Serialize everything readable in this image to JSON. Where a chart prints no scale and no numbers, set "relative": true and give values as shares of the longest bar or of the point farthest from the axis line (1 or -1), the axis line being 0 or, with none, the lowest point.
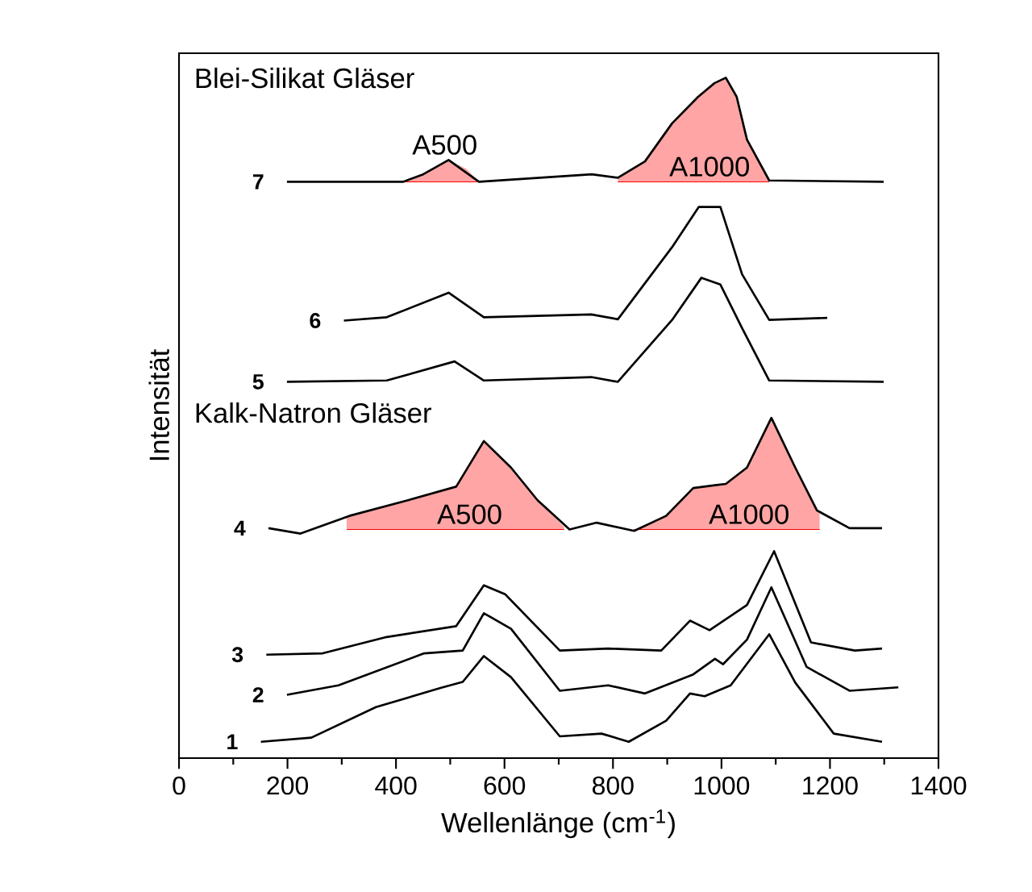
{
  "chart_data": {
    "type": "line",
    "relative": true,
    "xlabel": "Wellenlänge (cm$^{-1}$)",
    "ylabel": "Intensität",
    "xlim": [
      0,
      1400
    ],
    "xticks": [
      0,
      200,
      400,
      600,
      800,
      1000,
      1200,
      1400
    ],
    "legend": false,
    "grid": false,
    "marker": "none",
    "line_style": "solid",
    "annotations": [
      "Blei-Silikat Gläser",
      "Kalk-Natron Gläser"
    ],
    "series": [
      {
        "name": "A500",
        "type": "line",
        "color": "#ff0000",
        "x": [
          413,
          450,
          497,
          530,
          553
        ],
        "values": [
          0.847,
          0.847,
          0.847,
          0.847,
          0.847
        ],
        "upper": [
          0.847,
          0.858,
          0.879,
          0.866,
          0.847
        ],
        "lower": [
          0.847,
          0.847,
          0.847,
          0.847,
          0.847
        ]
      },
      {
        "name": "A1000",
        "type": "line",
        "color": "#ff0000",
        "x": [
          809,
          859,
          909,
          957,
          987,
          1008,
          1028,
          1047,
          1088
        ],
        "values": [
          0.847,
          0.847,
          0.847,
          0.847,
          0.847,
          0.847,
          0.847,
          0.847,
          0.847
        ],
        "upper": [
          0.853,
          0.877,
          0.933,
          0.972,
          0.992,
          1.0,
          0.972,
          0.909,
          0.849
        ],
        "lower": [
          0.847,
          0.847,
          0.847,
          0.847,
          0.847,
          0.847,
          0.847,
          0.847,
          0.847
        ]
      },
      {
        "name": "A500",
        "type": "line",
        "color": "#ff0000",
        "x": [
          309,
          314,
          422,
          511,
          562,
          612,
          661,
          710
        ],
        "values": [
          0.336,
          0.336,
          0.336,
          0.336,
          0.336,
          0.336,
          0.336,
          0.336
        ],
        "upper": [
          0.354,
          0.356,
          0.379,
          0.399,
          0.466,
          0.427,
          0.379,
          0.34
        ],
        "lower": [
          0.336,
          0.336,
          0.336,
          0.336,
          0.336,
          0.336,
          0.336,
          0.336
        ]
      },
      {
        "name": "A1000",
        "type": "line",
        "color": "#ff0000",
        "x": [
          839,
          898,
          948,
          988,
          1008,
          1047,
          1092,
          1136,
          1176,
          1181
        ],
        "values": [
          0.336,
          0.336,
          0.336,
          0.336,
          0.336,
          0.336,
          0.336,
          0.336,
          0.336,
          0.336
        ],
        "upper": [
          0.336,
          0.356,
          0.397,
          0.401,
          0.403,
          0.427,
          0.5,
          0.427,
          0.364,
          0.36
        ],
        "lower": [
          0.336,
          0.336,
          0.336,
          0.336,
          0.336,
          0.336,
          0.336,
          0.336,
          0.336,
          0.336
        ]
      },
      {
        "name": "1",
        "color": "#000000",
        "x": [
          151,
          244,
          363,
          482,
          523,
          562,
          612,
          702,
          779,
          829,
          898,
          942,
          969,
          1017,
          1088,
          1136,
          1207,
          1296
        ],
        "values": [
          0.024,
          0.03,
          0.075,
          0.103,
          0.112,
          0.15,
          0.119,
          0.032,
          0.036,
          0.024,
          0.055,
          0.095,
          0.091,
          0.107,
          0.182,
          0.111,
          0.036,
          0.024
        ]
      },
      {
        "name": "2",
        "color": "#000000",
        "x": [
          199,
          294,
          452,
          523,
          562,
          612,
          702,
          791,
          859,
          948,
          988,
          1003,
          1047,
          1092,
          1157,
          1236,
          1326
        ],
        "values": [
          0.093,
          0.107,
          0.154,
          0.158,
          0.213,
          0.19,
          0.099,
          0.107,
          0.095,
          0.123,
          0.146,
          0.138,
          0.174,
          0.251,
          0.134,
          0.099,
          0.104
        ]
      },
      {
        "name": "3",
        "color": "#000000",
        "x": [
          161,
          265,
          383,
          511,
          562,
          601,
          702,
          791,
          889,
          942,
          978,
          1047,
          1097,
          1165,
          1246,
          1296
        ],
        "values": [
          0.152,
          0.154,
          0.178,
          0.194,
          0.254,
          0.241,
          0.158,
          0.161,
          0.158,
          0.202,
          0.188,
          0.225,
          0.304,
          0.17,
          0.158,
          0.161
        ]
      },
      {
        "name": "4",
        "color": "#000000",
        "x": [
          165,
          224,
          314,
          422,
          511,
          562,
          612,
          661,
          720,
          770,
          839,
          898,
          948,
          988,
          1008,
          1047,
          1092,
          1136,
          1176,
          1236,
          1296
        ],
        "values": [
          0.338,
          0.33,
          0.356,
          0.379,
          0.399,
          0.466,
          0.427,
          0.379,
          0.336,
          0.346,
          0.334,
          0.356,
          0.397,
          0.401,
          0.403,
          0.427,
          0.5,
          0.427,
          0.364,
          0.338,
          0.338
        ]
      },
      {
        "name": "5",
        "color": "#000000",
        "x": [
          199,
          383,
          508,
          562,
          760,
          809,
          909,
          963,
          998,
          1038,
          1088,
          1299
        ],
        "values": [
          0.553,
          0.555,
          0.583,
          0.555,
          0.56,
          0.553,
          0.644,
          0.706,
          0.696,
          0.632,
          0.555,
          0.553
        ]
      },
      {
        "name": "6",
        "color": "#000000",
        "x": [
          304,
          383,
          497,
          562,
          760,
          809,
          909,
          958,
          998,
          1038,
          1088,
          1195
        ],
        "values": [
          0.643,
          0.648,
          0.684,
          0.648,
          0.652,
          0.645,
          0.751,
          0.81,
          0.81,
          0.711,
          0.644,
          0.647
        ]
      },
      {
        "name": "7",
        "color": "#000000",
        "x": [
          199,
          413,
          450,
          497,
          553,
          761,
          809,
          859,
          909,
          957,
          987,
          1008,
          1028,
          1047,
          1088,
          1299
        ],
        "values": [
          0.847,
          0.847,
          0.858,
          0.879,
          0.847,
          0.858,
          0.853,
          0.877,
          0.933,
          0.972,
          0.992,
          1.0,
          0.972,
          0.909,
          0.849,
          0.847
        ]
      }
    ]
  }
}
